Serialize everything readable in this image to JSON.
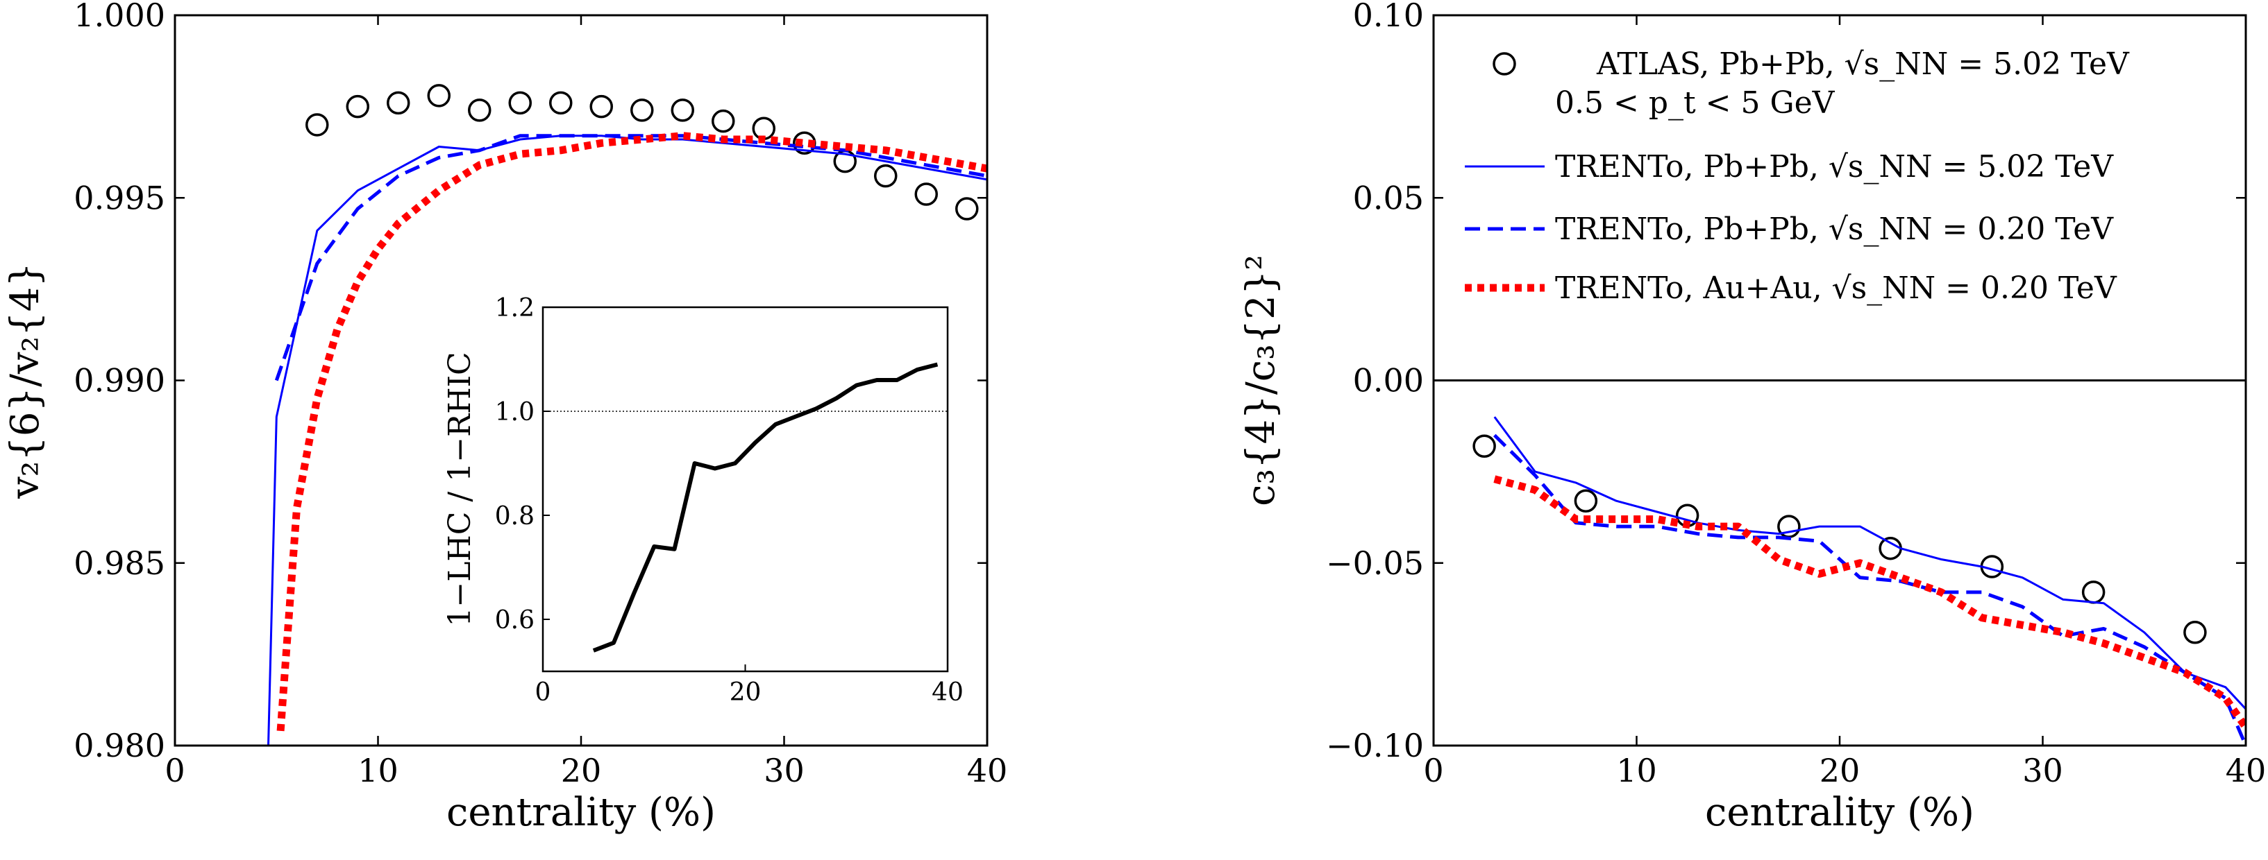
{
  "chart_data": [
    {
      "type": "scatter",
      "xlabel": "centrality (%)",
      "ylabel": "v₂{6}/v₂{4}",
      "xlim": [
        0,
        40
      ],
      "ylim": [
        0.98,
        1.0
      ],
      "xticks": [
        "0",
        "10",
        "20",
        "30",
        "40"
      ],
      "yticks": [
        "0.980",
        "0.985",
        "0.990",
        "0.995",
        "1.000"
      ],
      "colors": {
        "atlas": "#000000",
        "trento_lhc": "#0000ff",
        "trento_pbpb_rhic": "#0000ff",
        "trento_auau": "#ff0000"
      },
      "series": [
        {
          "key": "atlas",
          "style": "open-circle",
          "x": [
            7,
            9,
            11,
            13,
            15,
            17,
            19,
            21,
            23,
            25,
            27,
            29,
            31,
            33,
            35,
            37,
            39
          ],
          "y": [
            0.997,
            0.9975,
            0.9976,
            0.9978,
            0.9974,
            0.9976,
            0.9976,
            0.9975,
            0.9974,
            0.9974,
            0.9971,
            0.9969,
            0.9965,
            0.996,
            0.9956,
            0.9951,
            0.9947
          ]
        },
        {
          "key": "trento_lhc",
          "style": "solid",
          "x": [
            4.6,
            5,
            7,
            9,
            11,
            13,
            15,
            17,
            19,
            21,
            23,
            25,
            27,
            29,
            31,
            33,
            35,
            37,
            40
          ],
          "y": [
            0.98,
            0.989,
            0.9941,
            0.9952,
            0.9958,
            0.9964,
            0.9963,
            0.9966,
            0.9967,
            0.9967,
            0.9966,
            0.9966,
            0.9965,
            0.9964,
            0.9963,
            0.9962,
            0.996,
            0.9958,
            0.9955
          ]
        },
        {
          "key": "trento_pbpb_rhic",
          "style": "dashed",
          "x": [
            5,
            7,
            9,
            11,
            13,
            15,
            17,
            19,
            21,
            23,
            25,
            27,
            29,
            31,
            33,
            35,
            37,
            40
          ],
          "y": [
            0.99,
            0.9932,
            0.9947,
            0.9956,
            0.9961,
            0.9963,
            0.9967,
            0.9967,
            0.9967,
            0.9967,
            0.9967,
            0.9966,
            0.9965,
            0.9964,
            0.9963,
            0.9961,
            0.9959,
            0.9956
          ]
        },
        {
          "key": "trento_auau",
          "style": "dotted",
          "x": [
            5.2,
            6,
            7,
            8,
            9,
            10,
            11,
            13,
            15,
            17,
            19,
            21,
            23,
            25,
            27,
            29,
            31,
            33,
            35,
            37,
            40
          ],
          "y": [
            0.9804,
            0.9865,
            0.9895,
            0.9914,
            0.9927,
            0.9936,
            0.9943,
            0.9952,
            0.9959,
            0.9962,
            0.9963,
            0.9965,
            0.9966,
            0.9967,
            0.9966,
            0.9966,
            0.9965,
            0.9964,
            0.9963,
            0.9961,
            0.9958
          ]
        }
      ],
      "inset": {
        "type": "line",
        "xlabel": "",
        "ylabel": "1−LHC / 1−RHIC",
        "xlim": [
          0,
          40
        ],
        "ylim": [
          0.5,
          1.2
        ],
        "xticks": [
          "0",
          "20",
          "40"
        ],
        "yticks": [
          "0.6",
          "0.8",
          "1.0",
          "1.2"
        ],
        "reference_y": 1.0,
        "x": [
          5,
          7,
          9,
          11,
          13,
          15,
          17,
          19,
          21,
          23,
          25,
          27,
          29,
          31,
          33,
          35,
          37,
          39
        ],
        "y": [
          0.54,
          0.555,
          0.65,
          0.74,
          0.735,
          0.9,
          0.89,
          0.9,
          0.94,
          0.975,
          0.99,
          1.005,
          1.025,
          1.05,
          1.06,
          1.06,
          1.08,
          1.09
        ]
      }
    },
    {
      "type": "scatter",
      "xlabel": "centrality (%)",
      "ylabel": "c₃{4}/c₃{2}²",
      "xlim": [
        0,
        40
      ],
      "ylim": [
        -0.1,
        0.1
      ],
      "xticks": [
        "0",
        "10",
        "20",
        "30",
        "40"
      ],
      "yticks": [
        "−0.10",
        "−0.05",
        "0.00",
        "0.05",
        "0.10"
      ],
      "reference_y": 0,
      "legend": {
        "position": "top-right",
        "entries": [
          {
            "key": "atlas",
            "style": "open-circle",
            "label": "ATLAS, Pb+Pb, √s_NN = 5.02 TeV",
            "label2": "0.5 < p_t < 5 GeV"
          },
          {
            "key": "trento_lhc",
            "style": "solid",
            "label": "TRENTo, Pb+Pb, √s_NN = 5.02 TeV"
          },
          {
            "key": "trento_pbpb_rhic",
            "style": "dashed",
            "label": "TRENTo, Pb+Pb, √s_NN = 0.20 TeV"
          },
          {
            "key": "trento_auau",
            "style": "dotted",
            "label": "TRENTo, Au+Au, √s_NN = 0.20 TeV"
          }
        ]
      },
      "series": [
        {
          "key": "atlas",
          "style": "open-circle",
          "x": [
            2.5,
            7.5,
            12.5,
            17.5,
            22.5,
            27.5,
            32.5,
            37.5
          ],
          "y": [
            -0.018,
            -0.033,
            -0.037,
            -0.04,
            -0.046,
            -0.051,
            -0.058,
            -0.069
          ]
        },
        {
          "key": "trento_lhc",
          "style": "solid",
          "x": [
            3,
            5,
            7,
            9,
            11,
            13,
            15,
            17,
            19,
            21,
            23,
            25,
            27,
            29,
            31,
            33,
            35,
            37,
            39,
            40
          ],
          "y": [
            -0.01,
            -0.025,
            -0.028,
            -0.033,
            -0.036,
            -0.039,
            -0.041,
            -0.042,
            -0.04,
            -0.04,
            -0.046,
            -0.049,
            -0.051,
            -0.054,
            -0.06,
            -0.061,
            -0.069,
            -0.08,
            -0.084,
            -0.09
          ]
        },
        {
          "key": "trento_pbpb_rhic",
          "style": "dashed",
          "x": [
            3,
            5,
            7,
            9,
            11,
            13,
            15,
            17,
            19,
            21,
            23,
            25,
            27,
            29,
            31,
            33,
            35,
            37,
            39,
            40
          ],
          "y": [
            -0.015,
            -0.026,
            -0.039,
            -0.04,
            -0.04,
            -0.042,
            -0.043,
            -0.043,
            -0.044,
            -0.054,
            -0.055,
            -0.058,
            -0.058,
            -0.062,
            -0.07,
            -0.068,
            -0.073,
            -0.08,
            -0.087,
            -0.1
          ]
        },
        {
          "key": "trento_auau",
          "style": "dotted",
          "x": [
            3,
            5,
            7,
            9,
            11,
            13,
            15,
            17,
            19,
            21,
            23,
            25,
            27,
            29,
            31,
            33,
            35,
            37,
            39,
            40
          ],
          "y": [
            -0.027,
            -0.03,
            -0.038,
            -0.038,
            -0.038,
            -0.04,
            -0.04,
            -0.049,
            -0.053,
            -0.05,
            -0.054,
            -0.058,
            -0.065,
            -0.067,
            -0.069,
            -0.072,
            -0.076,
            -0.08,
            -0.087,
            -0.095
          ]
        }
      ]
    }
  ]
}
